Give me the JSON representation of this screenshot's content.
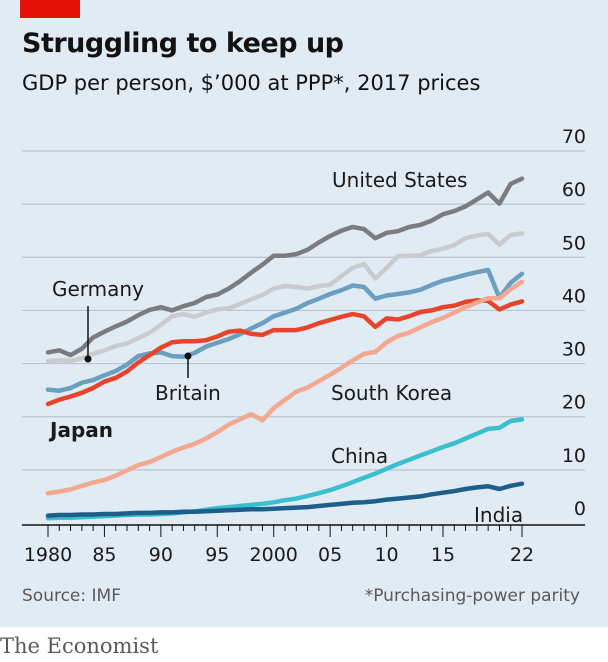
{
  "header": {
    "title": "Struggling to keep up",
    "subtitle": "GDP per person, $’000 at PPP*, 2017 prices"
  },
  "footer": {
    "source": "Source: IMF",
    "note": "*Purchasing-power parity"
  },
  "brand": "The Economist",
  "chart_data": {
    "type": "line",
    "xlim": [
      1980,
      2022
    ],
    "ylim": [
      0,
      70
    ],
    "x_tick_labels": [
      "1980",
      "85",
      "90",
      "95",
      "2000",
      "05",
      "10",
      "15",
      "22"
    ],
    "x_tick_values": [
      1980,
      1985,
      1990,
      1995,
      2000,
      2005,
      2010,
      2015,
      2022
    ],
    "y_ticks": [
      0,
      10,
      20,
      30,
      40,
      50,
      60,
      70
    ],
    "y_axis_side": "right",
    "grid": "horizontal",
    "x": [
      1980,
      1981,
      1982,
      1983,
      1984,
      1985,
      1986,
      1987,
      1988,
      1989,
      1990,
      1991,
      1992,
      1993,
      1994,
      1995,
      1996,
      1997,
      1998,
      1999,
      2000,
      2001,
      2002,
      2003,
      2004,
      2005,
      2006,
      2007,
      2008,
      2009,
      2010,
      2011,
      2012,
      2013,
      2014,
      2015,
      2016,
      2017,
      2018,
      2019,
      2020,
      2021,
      2022
    ],
    "series": [
      {
        "name": "United States",
        "color": "#7a7d80",
        "values": [
          32.1,
          32.5,
          31.6,
          32.8,
          34.9,
          36.0,
          37.0,
          37.9,
          39.1,
          40.1,
          40.6,
          40.0,
          40.8,
          41.4,
          42.5,
          43.0,
          44.1,
          45.5,
          47.1,
          48.6,
          50.3,
          50.3,
          50.6,
          51.4,
          52.8,
          54.0,
          55.0,
          55.7,
          55.3,
          53.6,
          54.6,
          54.9,
          55.7,
          56.1,
          56.9,
          58.1,
          58.7,
          59.6,
          60.9,
          62.2,
          60.1,
          63.8,
          64.8
        ]
      },
      {
        "name": "Germany",
        "color": "#c9cccf",
        "values": [
          30.5,
          30.6,
          30.5,
          31.0,
          31.8,
          32.5,
          33.3,
          33.8,
          34.8,
          35.8,
          37.3,
          38.9,
          39.3,
          38.8,
          39.6,
          40.2,
          40.4,
          41.2,
          42.1,
          42.9,
          44.1,
          44.6,
          44.4,
          44.1,
          44.6,
          44.8,
          46.5,
          48.0,
          48.7,
          46.0,
          48.0,
          50.2,
          50.3,
          50.4,
          51.2,
          51.6,
          52.3,
          53.6,
          54.1,
          54.4,
          52.4,
          54.2,
          54.5
        ]
      },
      {
        "name": "Britain",
        "color": "#6b9fc0",
        "values": [
          25.1,
          24.9,
          25.4,
          26.4,
          26.9,
          27.8,
          28.6,
          29.8,
          31.4,
          31.9,
          32.1,
          31.4,
          31.3,
          32.0,
          33.2,
          33.9,
          34.6,
          35.5,
          36.6,
          37.6,
          38.9,
          39.6,
          40.3,
          41.4,
          42.2,
          43.1,
          43.8,
          44.7,
          44.4,
          42.2,
          42.8,
          43.1,
          43.4,
          43.9,
          44.8,
          45.6,
          46.1,
          46.7,
          47.2,
          47.6,
          42.4,
          45.2,
          46.9
        ]
      },
      {
        "name": "Japan",
        "color": "#e8442c",
        "values": [
          22.4,
          23.2,
          23.8,
          24.5,
          25.4,
          26.6,
          27.3,
          28.5,
          30.2,
          31.6,
          33.0,
          34.0,
          34.2,
          34.2,
          34.4,
          35.1,
          36.0,
          36.2,
          35.6,
          35.4,
          36.3,
          36.3,
          36.3,
          36.8,
          37.6,
          38.2,
          38.8,
          39.3,
          38.9,
          36.9,
          38.5,
          38.3,
          38.9,
          39.7,
          40.0,
          40.6,
          40.9,
          41.6,
          41.9,
          41.8,
          40.2,
          41.1,
          41.7
        ]
      },
      {
        "name": "South Korea",
        "color": "#f3a88f",
        "values": [
          5.6,
          5.9,
          6.3,
          7.0,
          7.6,
          8.1,
          8.9,
          9.9,
          10.9,
          11.5,
          12.4,
          13.4,
          14.2,
          14.9,
          15.9,
          17.1,
          18.5,
          19.5,
          20.5,
          19.3,
          21.6,
          23.2,
          24.7,
          25.5,
          26.7,
          27.9,
          29.2,
          30.6,
          31.8,
          32.2,
          34.0,
          35.2,
          35.8,
          36.8,
          37.8,
          38.6,
          39.6,
          40.6,
          41.5,
          42.3,
          42.3,
          44.0,
          45.4
        ]
      },
      {
        "name": "China",
        "color": "#3bbfcf",
        "values": [
          0.9,
          1.0,
          1.0,
          1.1,
          1.2,
          1.3,
          1.4,
          1.5,
          1.6,
          1.6,
          1.7,
          1.8,
          2.0,
          2.2,
          2.5,
          2.8,
          3.0,
          3.2,
          3.4,
          3.6,
          3.9,
          4.3,
          4.6,
          5.1,
          5.6,
          6.2,
          6.9,
          7.7,
          8.5,
          9.3,
          10.2,
          11.1,
          11.9,
          12.7,
          13.5,
          14.3,
          15.0,
          15.9,
          16.8,
          17.7,
          17.9,
          19.2,
          19.5
        ]
      },
      {
        "name": "India",
        "color": "#1d5f8a",
        "values": [
          1.4,
          1.5,
          1.5,
          1.6,
          1.6,
          1.7,
          1.7,
          1.8,
          1.9,
          1.9,
          2.0,
          2.0,
          2.1,
          2.1,
          2.2,
          2.3,
          2.4,
          2.5,
          2.6,
          2.6,
          2.7,
          2.8,
          2.9,
          3.0,
          3.2,
          3.4,
          3.6,
          3.8,
          3.9,
          4.1,
          4.4,
          4.6,
          4.8,
          5.0,
          5.4,
          5.7,
          6.0,
          6.4,
          6.7,
          6.9,
          6.4,
          7.0,
          7.4
        ]
      }
    ],
    "annotations": [
      {
        "text": "United States",
        "series": "United States"
      },
      {
        "text": "Germany",
        "series": "Germany"
      },
      {
        "text": "Britain",
        "series": "Britain"
      },
      {
        "text": "Japan",
        "series": "Japan"
      },
      {
        "text": "South Korea",
        "series": "South Korea"
      },
      {
        "text": "China",
        "series": "China"
      },
      {
        "text": "India",
        "series": "India"
      }
    ]
  }
}
